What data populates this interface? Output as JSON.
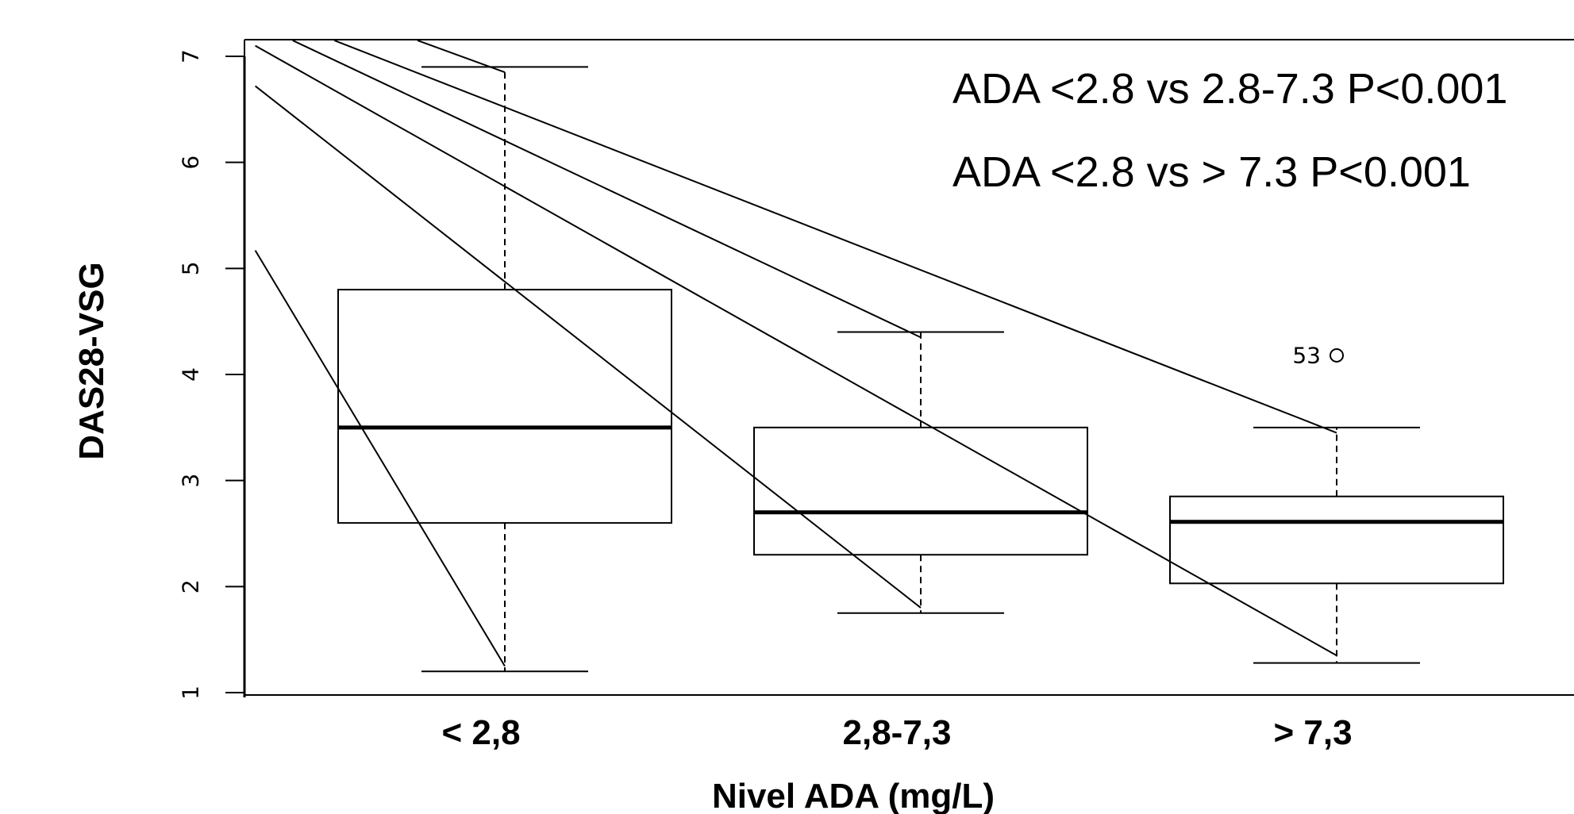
{
  "chart_data": {
    "type": "box",
    "xlabel": "Nivel ADA (mg/L)",
    "ylabel": "DAS28-VSG",
    "ylim": [
      1,
      7
    ],
    "yticks": [
      1,
      2,
      3,
      4,
      5,
      6,
      7
    ],
    "categories": [
      "< 2,8",
      "2,8-7,3",
      "> 7,3"
    ],
    "boxes": [
      {
        "category": "< 2,8",
        "whisker_low": 1.2,
        "q1": 2.6,
        "median": 3.5,
        "q3": 4.8,
        "whisker_high": 6.9
      },
      {
        "category": "2,8-7,3",
        "whisker_low": 1.75,
        "q1": 2.3,
        "median": 2.7,
        "q3": 3.5,
        "whisker_high": 4.4
      },
      {
        "category": "> 7,3",
        "whisker_low": 1.28,
        "q1": 2.03,
        "median": 2.61,
        "q3": 2.85,
        "whisker_high": 3.5
      }
    ],
    "outliers": [
      {
        "category": "> 7,3",
        "y": 4.18,
        "label": "53"
      }
    ],
    "annotations": [
      "ADA <2.8 vs 2.8-7.3  P<0.001",
      "ADA <2.8 vs > 7.3  P<0.001"
    ],
    "overlay_lines": [
      {
        "from": {
          "x": 0.4,
          "y": 5.17
        },
        "to": {
          "x": 1.0,
          "y": 1.25
        }
      },
      {
        "from": {
          "x": 0.4,
          "y": 6.72
        },
        "to": {
          "x": 2.0,
          "y": 1.8
        }
      },
      {
        "from": {
          "x": 0.4,
          "y": 7.1
        },
        "to": {
          "x": 3.0,
          "y": 1.35
        }
      },
      {
        "from": {
          "x": 0.49,
          "y": 7.15
        },
        "to": {
          "x": 2.0,
          "y": 4.35
        }
      },
      {
        "from": {
          "x": 0.59,
          "y": 7.15
        },
        "to": {
          "x": 3.0,
          "y": 3.45
        }
      },
      {
        "from": {
          "x": 0.79,
          "y": 7.15
        },
        "to": {
          "x": 1.0,
          "y": 6.85
        }
      }
    ]
  }
}
